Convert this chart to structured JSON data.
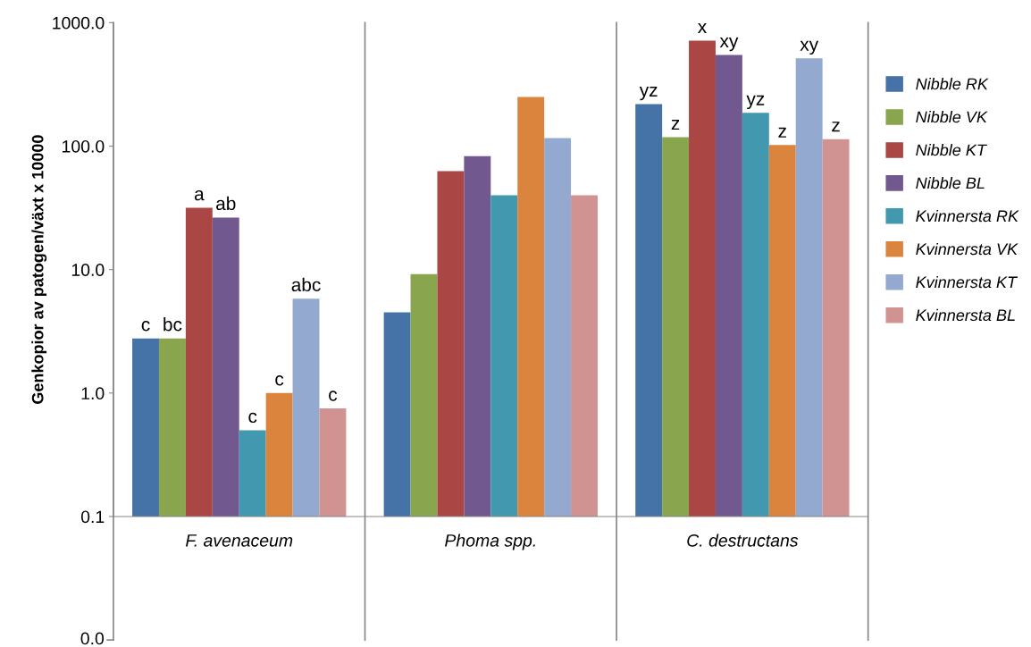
{
  "chart_data": {
    "type": "bar",
    "ylabel": "Genkopior av patogen/växt x 10000",
    "categories": [
      "F. avenaceum",
      "Phoma spp.",
      "C. destructans"
    ],
    "log": true,
    "ylim": [
      0.1,
      1000
    ],
    "annotations": [
      "0.0"
    ],
    "yticks": [
      {
        "value": 0.1,
        "label": "0.1"
      },
      {
        "value": 1,
        "label": "1.0"
      },
      {
        "value": 10,
        "label": "10.0"
      },
      {
        "value": 100,
        "label": "100.0"
      },
      {
        "value": 1000,
        "label": "1000.0"
      }
    ],
    "grid": false,
    "legend": "right",
    "series": [
      {
        "name": "Nibble RK",
        "color": "#4572a7",
        "values": [
          2.77,
          4.5,
          219
        ],
        "value_labels": [
          "c",
          null,
          "yz"
        ]
      },
      {
        "name": "Nibble VK",
        "color": "#89a54e",
        "values": [
          2.77,
          9.2,
          118
        ],
        "value_labels": [
          "bc",
          null,
          "z"
        ]
      },
      {
        "name": "Nibble KT",
        "color": "#aa4643",
        "values": [
          31.6,
          62.7,
          716
        ],
        "value_labels": [
          "a",
          null,
          "x"
        ]
      },
      {
        "name": "Nibble BL",
        "color": "#71588f",
        "values": [
          26.4,
          83,
          548
        ],
        "value_labels": [
          "ab",
          null,
          "xy"
        ]
      },
      {
        "name": "Kvinnersta RK",
        "color": "#4198af",
        "values": [
          0.5,
          40,
          186
        ],
        "value_labels": [
          "c",
          null,
          "yz"
        ]
      },
      {
        "name": "Kvinnersta VK",
        "color": "#db843d",
        "values": [
          1.0,
          250,
          102
        ],
        "value_labels": [
          "c",
          null,
          "z"
        ]
      },
      {
        "name": "Kvinnersta KT",
        "color": "#93a9cf",
        "values": [
          5.8,
          116,
          514
        ],
        "value_labels": [
          "abc",
          null,
          "xy"
        ]
      },
      {
        "name": "Kvinnersta BL",
        "color": "#d19392",
        "values": [
          0.75,
          40,
          114
        ],
        "value_labels": [
          "c",
          null,
          "z"
        ]
      }
    ]
  }
}
